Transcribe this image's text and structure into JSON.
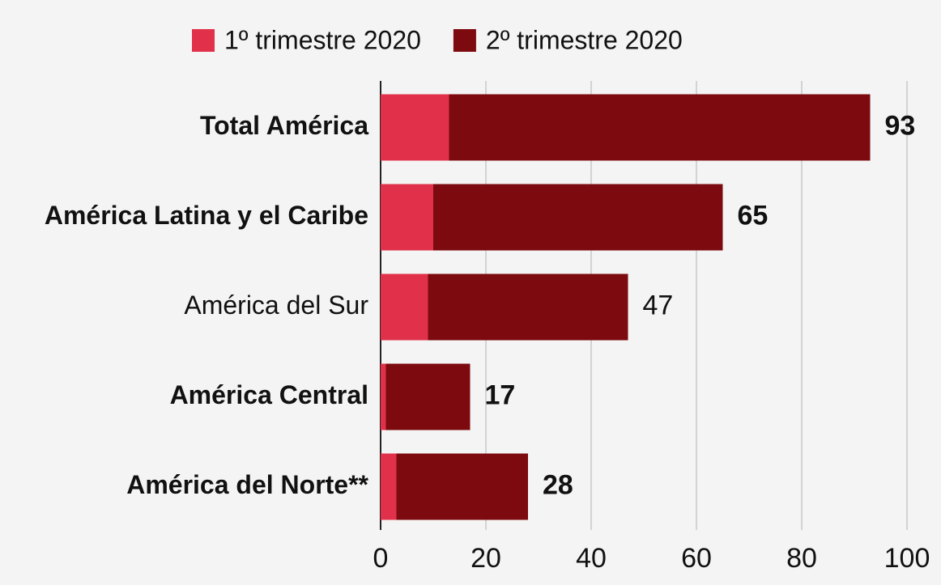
{
  "chart_data": {
    "type": "stacked_bar_horizontal",
    "categories": [
      "Total América",
      "América Latina y el Caribe",
      "América del Sur",
      "América Central",
      "América del Norte**"
    ],
    "bold": [
      true,
      true,
      false,
      true,
      true
    ],
    "series": [
      {
        "name": "1º trimestre 2020",
        "color": "#e0304a",
        "values": [
          13,
          10,
          9,
          1,
          3
        ]
      },
      {
        "name": "2º trimestre 2020",
        "color": "#7d0a0e",
        "values": [
          80,
          55,
          38,
          16,
          25
        ]
      }
    ],
    "totals": [
      93,
      65,
      47,
      17,
      28
    ],
    "xlim": [
      0,
      100
    ],
    "xticks": [
      0,
      20,
      40,
      60,
      80,
      100
    ],
    "grid": true,
    "legend": "top"
  }
}
